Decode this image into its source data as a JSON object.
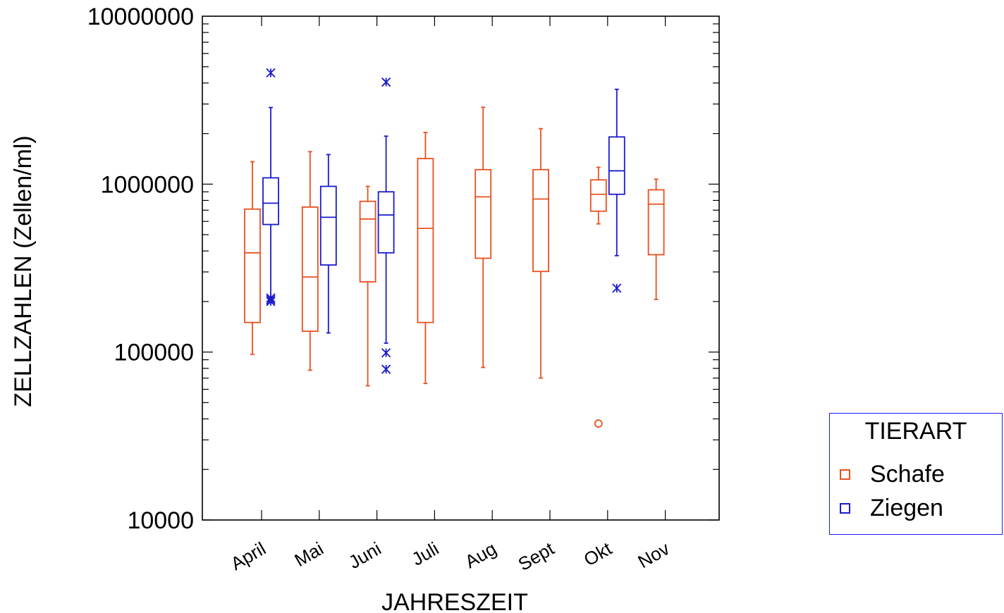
{
  "chart_data": {
    "type": "boxplot",
    "xlabel": "JAHRESZEIT",
    "ylabel": "ZELLZAHLEN (Zellen/ml)",
    "yscale": "log",
    "ylim": [
      10000,
      10000000
    ],
    "yticks": [
      {
        "value": 10000,
        "label": "10000"
      },
      {
        "value": 100000,
        "label": "100000"
      },
      {
        "value": 1000000,
        "label": "1000000"
      },
      {
        "value": 10000000,
        "label": "10000000"
      }
    ],
    "categories": [
      "April",
      "Mai",
      "Juni",
      "Juli",
      "Aug",
      "Sept",
      "Okt",
      "Nov"
    ],
    "legend": {
      "title": "TIERART",
      "position": "right"
    },
    "series": [
      {
        "name": "Schafe",
        "color": "#e8501e",
        "boxes": [
          {
            "category": "April",
            "whisker_low": 97000,
            "q1": 150000,
            "median": 390000,
            "q3": 710000,
            "whisker_high": 1360000,
            "outliers": []
          },
          {
            "category": "Mai",
            "whisker_low": 78000,
            "q1": 133000,
            "median": 280000,
            "q3": 730000,
            "whisker_high": 1560000,
            "outliers": []
          },
          {
            "category": "Juni",
            "whisker_low": 63000,
            "q1": 262000,
            "median": 620000,
            "q3": 790000,
            "whisker_high": 970000,
            "outliers": []
          },
          {
            "category": "Juli",
            "whisker_low": 65000,
            "q1": 150000,
            "median": 545000,
            "q3": 1420000,
            "whisker_high": 2030000,
            "outliers": []
          },
          {
            "category": "Aug",
            "whisker_low": 81000,
            "q1": 362000,
            "median": 840000,
            "q3": 1220000,
            "whisker_high": 2870000,
            "outliers": []
          },
          {
            "category": "Sept",
            "whisker_low": 70000,
            "q1": 302000,
            "median": 815000,
            "q3": 1220000,
            "whisker_high": 2140000,
            "outliers": []
          },
          {
            "category": "Okt",
            "whisker_low": 580000,
            "q1": 690000,
            "median": 870000,
            "q3": 1060000,
            "whisker_high": 1260000,
            "outliers": [
              37500
            ]
          },
          {
            "category": "Nov",
            "whisker_low": 206000,
            "q1": 380000,
            "median": 760000,
            "q3": 925000,
            "whisker_high": 1070000,
            "outliers": []
          }
        ]
      },
      {
        "name": "Ziegen",
        "color": "#1a1acc",
        "boxes": [
          {
            "category": "April",
            "whisker_low": 210000,
            "q1": 575000,
            "median": 770000,
            "q3": 1090000,
            "whisker_high": 2860000,
            "outliers": [
              4600000,
              210000,
              205000,
              200000
            ]
          },
          {
            "category": "Mai",
            "whisker_low": 130000,
            "q1": 330000,
            "median": 635000,
            "q3": 970000,
            "whisker_high": 1500000,
            "outliers": []
          },
          {
            "category": "Juni",
            "whisker_low": 113000,
            "q1": 390000,
            "median": 655000,
            "q3": 900000,
            "whisker_high": 1930000,
            "outliers": [
              4050000,
              99000,
              79000
            ]
          },
          {
            "category": "Okt",
            "whisker_low": 375000,
            "q1": 870000,
            "median": 1200000,
            "q3": 1910000,
            "whisker_high": 3670000,
            "outliers": [
              240000
            ]
          }
        ]
      }
    ]
  }
}
